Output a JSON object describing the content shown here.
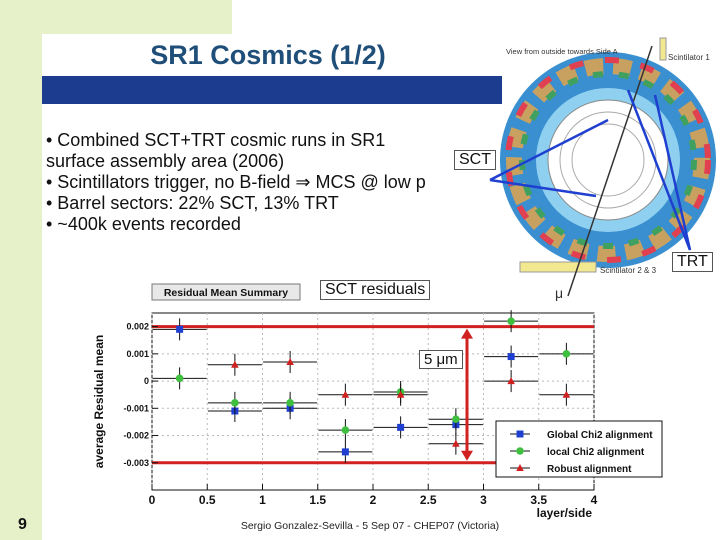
{
  "slide": {
    "title": "SR1 Cosmics (1/2)",
    "bullets": [
      "• Combined SCT+TRT cosmic runs in SR1",
      "surface assembly area (2006)",
      "• Scintillators trigger, no B-field ⇒ MCS @ low p",
      "• Barrel sectors: 22% SCT, 13% TRT",
      "• ~400k events recorded"
    ],
    "label_sct": "SCT",
    "label_trt": "TRT",
    "label_residuals": "SCT residuals",
    "label_5um": "5 μm",
    "label_mu": "μ",
    "detector_view": "View from outside towards Side A",
    "scintillator_1": "Scintilator 1",
    "scintillator_2": "Scintilator 2 & 3",
    "footer": "Sergio Gonzalez-Sevilla - 5 Sep 07 - CHEP07 (Victoria)",
    "page_number": "9"
  },
  "chart_data": {
    "type": "scatter",
    "title": "Residual Mean Summary",
    "xlabel": "layer/side",
    "ylabel": "average Residual mean",
    "xlim": [
      0,
      4
    ],
    "ylim": [
      -0.004,
      0.0025
    ],
    "xticks": [
      "0",
      "0.5",
      "1",
      "1.5",
      "2",
      "2.5",
      "3",
      "3.5",
      "4"
    ],
    "yticks": [
      "0.002",
      "0.001",
      "0",
      "-0.001",
      "-0.002",
      "-0.003"
    ],
    "grid": true,
    "legend_position": "bottom-right",
    "reference_lines": [
      0.002,
      -0.003
    ],
    "series": [
      {
        "name": "Global Chi2 alignment",
        "color": "#1f3fd0",
        "marker": "square",
        "x": [
          0.25,
          0.75,
          1.25,
          1.75,
          2.25,
          2.75,
          3.25
        ],
        "y": [
          0.0019,
          -0.0011,
          -0.001,
          -0.0026,
          -0.0017,
          -0.0016,
          0.0009
        ]
      },
      {
        "name": "local Chi2 alignment",
        "color": "#3fbf3f",
        "marker": "circle",
        "x": [
          0.25,
          0.75,
          1.25,
          1.75,
          2.25,
          2.75,
          3.25,
          3.75
        ],
        "y": [
          0.0001,
          -0.0008,
          -0.0008,
          -0.0018,
          -0.0004,
          -0.0014,
          0.0022,
          0.001
        ]
      },
      {
        "name": "Robust alignment",
        "color": "#d02020",
        "marker": "triangle",
        "x": [
          0.75,
          1.25,
          1.75,
          2.25,
          2.75,
          3.25,
          3.75
        ],
        "y": [
          0.0006,
          0.0007,
          -0.0005,
          -0.0005,
          -0.0023,
          0.0,
          -0.0005
        ]
      }
    ]
  }
}
